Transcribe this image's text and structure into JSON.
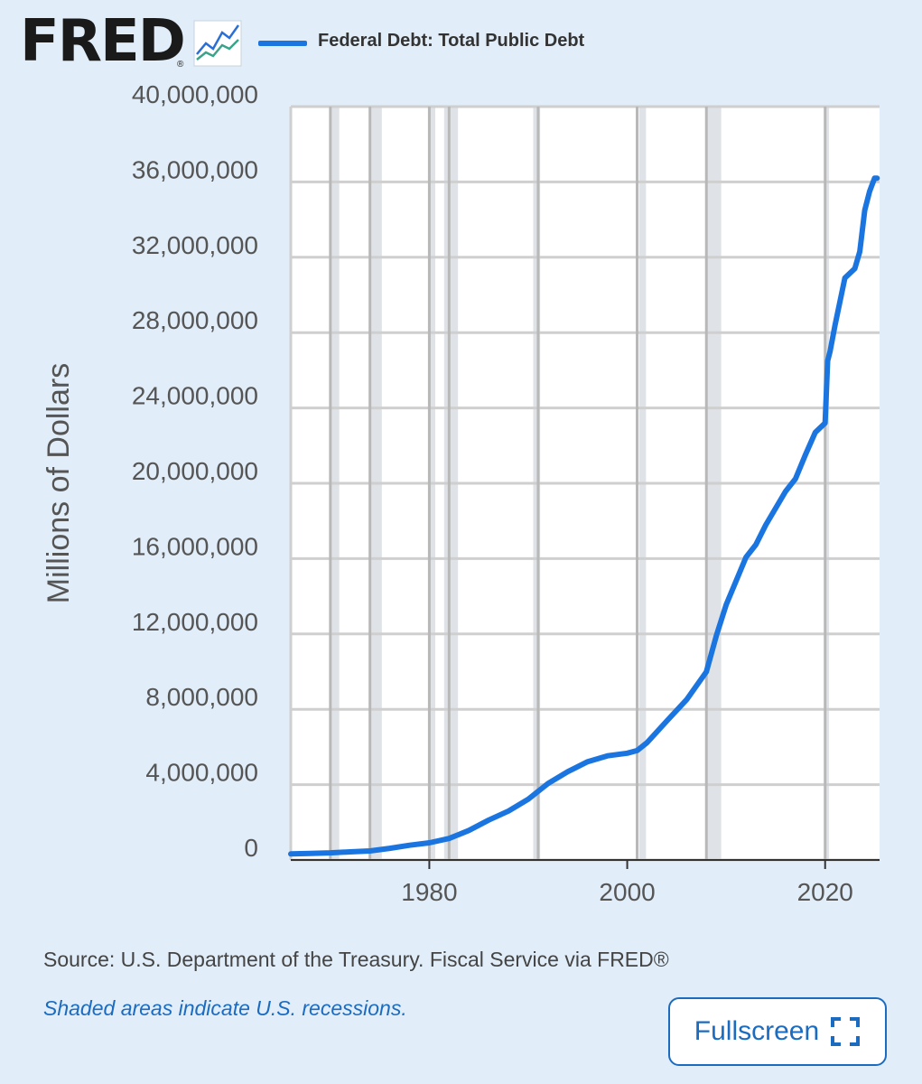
{
  "logo": {
    "text": "FRED",
    "reg": "®"
  },
  "legend": {
    "label": "Federal Debt: Total Public Debt",
    "color": "#1b75e0"
  },
  "source": "Source: U.S. Department of the Treasury. Fiscal Service via FRED®",
  "note": "Shaded areas indicate U.S. recessions.",
  "fullscreen_label": "Fullscreen",
  "colors": {
    "line": "#1b75e0",
    "accent": "#1b6bc0",
    "background": "#e1edf8",
    "plot_background": "#ffffff",
    "recession": "#dfe2e6"
  },
  "icons": {
    "logo_chart": "line-chart-icon",
    "fullscreen": "expand-icon"
  },
  "chart_data": {
    "type": "line",
    "title": "",
    "xlabel": "",
    "ylabel": "Millions of Dollars",
    "ylim": [
      0,
      40000000
    ],
    "xlim": [
      1966,
      2025.5
    ],
    "y_ticks": [
      0,
      4000000,
      8000000,
      12000000,
      16000000,
      20000000,
      24000000,
      28000000,
      32000000,
      36000000,
      40000000
    ],
    "y_tick_labels": [
      "0",
      "4,000,000",
      "8,000,000",
      "12,000,000",
      "16,000,000",
      "20,000,000",
      "24,000,000",
      "28,000,000",
      "32,000,000",
      "36,000,000",
      "40,000,000"
    ],
    "x_ticks": [
      1980,
      2000,
      2020
    ],
    "x_tick_labels": [
      "1980",
      "2000",
      "2020"
    ],
    "grid": true,
    "x_gridlines": [
      1970,
      1974,
      1980,
      1982,
      1991,
      2001,
      2008,
      2020
    ],
    "recessions": [
      [
        1969.9,
        1970.9
      ],
      [
        1973.9,
        1975.2
      ],
      [
        1980.0,
        1980.6
      ],
      [
        1981.5,
        1982.9
      ],
      [
        1990.5,
        1991.2
      ],
      [
        2001.2,
        2001.9
      ],
      [
        2007.9,
        2009.5
      ],
      [
        2020.1,
        2020.4
      ]
    ],
    "series": [
      {
        "name": "Federal Debt: Total Public Debt",
        "x": [
          1966,
          1968,
          1970,
          1972,
          1974,
          1976,
          1978,
          1980,
          1982,
          1984,
          1986,
          1988,
          1990,
          1992,
          1994,
          1996,
          1998,
          2000,
          2001,
          2002,
          2004,
          2006,
          2008,
          2009,
          2010,
          2012,
          2013,
          2014,
          2016,
          2017,
          2018,
          2019,
          2020,
          2020.25,
          2020.5,
          2021,
          2022,
          2023,
          2023.5,
          2024,
          2024.5,
          2025,
          2025.25
        ],
        "y": [
          320000,
          350000,
          380000,
          430000,
          480000,
          620000,
          780000,
          910000,
          1140000,
          1570000,
          2120000,
          2600000,
          3230000,
          4060000,
          4690000,
          5220000,
          5530000,
          5670000,
          5810000,
          6230000,
          7380000,
          8510000,
          9990000,
          11900000,
          13560000,
          16070000,
          16740000,
          17790000,
          19570000,
          20240000,
          21500000,
          22700000,
          23200000,
          26500000,
          27000000,
          28400000,
          30900000,
          31400000,
          32300000,
          34500000,
          35500000,
          36200000,
          36200000
        ]
      }
    ]
  }
}
